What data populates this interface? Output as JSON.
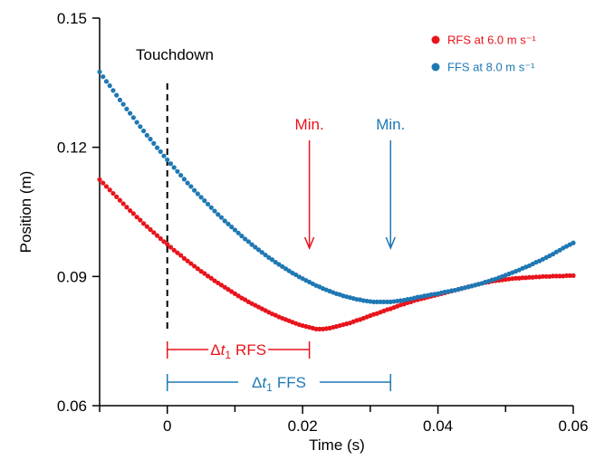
{
  "chart_data": {
    "type": "scatter",
    "title": "",
    "xlabel": "Time (s)",
    "ylabel": "Position (m)",
    "xlim": [
      -0.01,
      0.06
    ],
    "ylim": [
      0.06,
      0.15
    ],
    "xticks": [
      0,
      0.02,
      0.04,
      0.06
    ],
    "xtick_labels": [
      "0",
      "0.02",
      "0.04",
      "0.06"
    ],
    "yticks": [
      0.06,
      0.09,
      0.12,
      0.15
    ],
    "ytick_labels": [
      "0.06",
      "0.09",
      "0.12",
      "0.15"
    ],
    "grid": false,
    "legend_position": "top-right",
    "touchdown_label": "Touchdown",
    "touchdown_x": 0,
    "series": [
      {
        "name": "RFS at 6.0 m s⁻¹",
        "color": "#e8141c",
        "min_label": "Min.",
        "min_x": 0.021,
        "interval_label_delta": "Δ",
        "interval_label_t": "t",
        "interval_label_sub": "1",
        "interval_label_suffix": "RFS",
        "x": [
          -0.01,
          -0.0095,
          -0.009,
          -0.0085,
          -0.008,
          -0.0075,
          -0.007,
          -0.0065,
          -0.006,
          -0.0055,
          -0.005,
          -0.0045,
          -0.004,
          -0.0035,
          -0.003,
          -0.0025,
          -0.002,
          -0.0015,
          -0.001,
          -0.0005,
          0.0,
          0.0005,
          0.001,
          0.0015,
          0.002,
          0.0025,
          0.003,
          0.0035,
          0.004,
          0.0045,
          0.005,
          0.0055,
          0.006,
          0.0065,
          0.007,
          0.0075,
          0.008,
          0.0085,
          0.009,
          0.0095,
          0.01,
          0.0105,
          0.011,
          0.0115,
          0.012,
          0.0125,
          0.013,
          0.0135,
          0.014,
          0.0145,
          0.015,
          0.0155,
          0.016,
          0.0165,
          0.017,
          0.0175,
          0.018,
          0.0185,
          0.019,
          0.0195,
          0.02,
          0.0205,
          0.021,
          0.0215,
          0.022,
          0.0225,
          0.023,
          0.0235,
          0.024,
          0.0245,
          0.025,
          0.0255,
          0.026,
          0.0265,
          0.027,
          0.0275,
          0.028,
          0.0285,
          0.029,
          0.0295,
          0.03,
          0.0305,
          0.031,
          0.0315,
          0.032,
          0.0325,
          0.033,
          0.0335,
          0.034,
          0.0345,
          0.035,
          0.0355,
          0.036,
          0.0365,
          0.037,
          0.0375,
          0.038,
          0.0385,
          0.039,
          0.0395,
          0.04,
          0.0405,
          0.041,
          0.0415,
          0.042,
          0.0425,
          0.043,
          0.0435,
          0.044,
          0.0445,
          0.045,
          0.0455,
          0.046,
          0.0465,
          0.047,
          0.0475,
          0.048,
          0.0485,
          0.049,
          0.0495,
          0.05,
          0.0505,
          0.051,
          0.0515,
          0.052,
          0.0525,
          0.053,
          0.0535,
          0.054,
          0.0545,
          0.055,
          0.0555,
          0.056,
          0.0565,
          0.057,
          0.0575,
          0.058,
          0.0585,
          0.059,
          0.0595,
          0.06
        ],
        "y": [
          0.1125,
          0.1117,
          0.1109,
          0.1101,
          0.1093,
          0.1085,
          0.1077,
          0.1069,
          0.1061,
          0.1053,
          0.1046,
          0.1038,
          0.1031,
          0.1023,
          0.1016,
          0.1009,
          0.1002,
          0.0995,
          0.0988,
          0.0981,
          0.0975,
          0.0968,
          0.0961,
          0.0955,
          0.0949,
          0.0942,
          0.0936,
          0.093,
          0.0924,
          0.0918,
          0.0912,
          0.0907,
          0.0901,
          0.0896,
          0.089,
          0.0885,
          0.088,
          0.0875,
          0.087,
          0.0865,
          0.086,
          0.0855,
          0.085,
          0.0846,
          0.0841,
          0.0837,
          0.0833,
          0.0829,
          0.0825,
          0.0821,
          0.0817,
          0.0813,
          0.081,
          0.0806,
          0.0803,
          0.08,
          0.0797,
          0.0794,
          0.0791,
          0.0788,
          0.0786,
          0.0784,
          0.0782,
          0.078,
          0.0778,
          0.0778,
          0.0778,
          0.0779,
          0.078,
          0.0782,
          0.0784,
          0.0786,
          0.0788,
          0.079,
          0.0792,
          0.0795,
          0.0798,
          0.08,
          0.0803,
          0.0806,
          0.0809,
          0.0812,
          0.0814,
          0.0817,
          0.082,
          0.0823,
          0.0825,
          0.0828,
          0.0831,
          0.0834,
          0.0836,
          0.0839,
          0.0841,
          0.0844,
          0.0846,
          0.0848,
          0.085,
          0.0852,
          0.0854,
          0.0856,
          0.0858,
          0.086,
          0.0862,
          0.0864,
          0.0866,
          0.0868,
          0.087,
          0.0872,
          0.0874,
          0.0876,
          0.0878,
          0.088,
          0.0882,
          0.0884,
          0.0886,
          0.0887,
          0.0889,
          0.089,
          0.0891,
          0.0892,
          0.0893,
          0.0894,
          0.0895,
          0.0896,
          0.0896,
          0.0897,
          0.0897,
          0.0898,
          0.0898,
          0.0899,
          0.0899,
          0.09,
          0.09,
          0.09,
          0.0901,
          0.0901,
          0.0901,
          0.0901,
          0.0902,
          0.0902,
          0.0902
        ]
      },
      {
        "name": "FFS at 8.0 m s⁻¹",
        "color": "#1f78b4",
        "min_label": "Min.",
        "min_x": 0.033,
        "interval_label_delta": "Δ",
        "interval_label_t": "t",
        "interval_label_sub": "1",
        "interval_label_suffix": "FFS",
        "x": [
          -0.01,
          -0.0095,
          -0.009,
          -0.0085,
          -0.008,
          -0.0075,
          -0.007,
          -0.0065,
          -0.006,
          -0.0055,
          -0.005,
          -0.0045,
          -0.004,
          -0.0035,
          -0.003,
          -0.0025,
          -0.002,
          -0.0015,
          -0.001,
          -0.0005,
          0.0,
          0.0005,
          0.001,
          0.0015,
          0.002,
          0.0025,
          0.003,
          0.0035,
          0.004,
          0.0045,
          0.005,
          0.0055,
          0.006,
          0.0065,
          0.007,
          0.0075,
          0.008,
          0.0085,
          0.009,
          0.0095,
          0.01,
          0.0105,
          0.011,
          0.0115,
          0.012,
          0.0125,
          0.013,
          0.0135,
          0.014,
          0.0145,
          0.015,
          0.0155,
          0.016,
          0.0165,
          0.017,
          0.0175,
          0.018,
          0.0185,
          0.019,
          0.0195,
          0.02,
          0.0205,
          0.021,
          0.0215,
          0.022,
          0.0225,
          0.023,
          0.0235,
          0.024,
          0.0245,
          0.025,
          0.0255,
          0.026,
          0.0265,
          0.027,
          0.0275,
          0.028,
          0.0285,
          0.029,
          0.0295,
          0.03,
          0.0305,
          0.031,
          0.0315,
          0.032,
          0.0325,
          0.033,
          0.0335,
          0.034,
          0.0345,
          0.035,
          0.0355,
          0.036,
          0.0365,
          0.037,
          0.0375,
          0.038,
          0.0385,
          0.039,
          0.0395,
          0.04,
          0.0405,
          0.041,
          0.0415,
          0.042,
          0.0425,
          0.043,
          0.0435,
          0.044,
          0.0445,
          0.045,
          0.0455,
          0.046,
          0.0465,
          0.047,
          0.0475,
          0.048,
          0.0485,
          0.049,
          0.0495,
          0.05,
          0.0505,
          0.051,
          0.0515,
          0.052,
          0.0525,
          0.053,
          0.0535,
          0.054,
          0.0545,
          0.055,
          0.0555,
          0.056,
          0.0565,
          0.057,
          0.0575,
          0.058,
          0.0585,
          0.059,
          0.0595,
          0.06
        ],
        "y": [
          0.1375,
          0.1364,
          0.1353,
          0.1343,
          0.1332,
          0.1321,
          0.131,
          0.13,
          0.1289,
          0.1279,
          0.1269,
          0.1258,
          0.1248,
          0.1238,
          0.1228,
          0.1219,
          0.1209,
          0.1199,
          0.119,
          0.118,
          0.1171,
          0.1162,
          0.1153,
          0.1144,
          0.1135,
          0.1126,
          0.1117,
          0.1109,
          0.11,
          0.1092,
          0.1084,
          0.1076,
          0.1068,
          0.106,
          0.1052,
          0.1044,
          0.1037,
          0.1029,
          0.1022,
          0.1015,
          0.1008,
          0.1001,
          0.0994,
          0.0987,
          0.0981,
          0.0974,
          0.0968,
          0.0962,
          0.0956,
          0.095,
          0.0944,
          0.0939,
          0.0933,
          0.0928,
          0.0923,
          0.0918,
          0.0913,
          0.0908,
          0.0904,
          0.0899,
          0.0895,
          0.0891,
          0.0887,
          0.0883,
          0.0879,
          0.0876,
          0.0872,
          0.0869,
          0.0866,
          0.0863,
          0.086,
          0.0858,
          0.0855,
          0.0853,
          0.0851,
          0.0849,
          0.0847,
          0.0846,
          0.0844,
          0.0843,
          0.0842,
          0.0841,
          0.0841,
          0.0841,
          0.0841,
          0.0841,
          0.0841,
          0.0842,
          0.0843,
          0.0844,
          0.0845,
          0.0847,
          0.0848,
          0.085,
          0.0852,
          0.0853,
          0.0855,
          0.0856,
          0.0858,
          0.0859,
          0.086,
          0.0862,
          0.0864,
          0.0865,
          0.0867,
          0.0868,
          0.087,
          0.0872,
          0.0874,
          0.0876,
          0.0878,
          0.088,
          0.0882,
          0.0884,
          0.0887,
          0.0889,
          0.0892,
          0.0894,
          0.0897,
          0.09,
          0.0903,
          0.0906,
          0.0909,
          0.0912,
          0.0915,
          0.0919,
          0.0922,
          0.0925,
          0.0929,
          0.0933,
          0.0936,
          0.094,
          0.0944,
          0.0948,
          0.0952,
          0.0957,
          0.0961,
          0.0966,
          0.097,
          0.0974,
          0.0978
        ]
      }
    ]
  }
}
